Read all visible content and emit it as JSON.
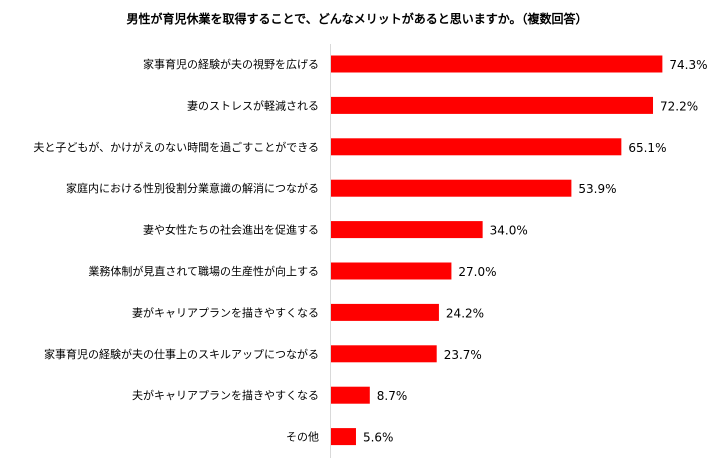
{
  "chart_data": {
    "type": "bar",
    "orientation": "horizontal",
    "title": "男性が育児休業を取得することで、どんなメリットがあると思いますか。（複数回答）",
    "categories": [
      "家事育児の経験が夫の視野を広げる",
      "妻のストレスが軽減される",
      "夫と子どもが、かけがえのない時間を過ごすことができる",
      "家庭内における性別役割分業意識の解消につながる",
      "妻や女性たちの社会進出を促進する",
      "業務体制が見直されて職場の生産性が向上する",
      "妻がキャリアプランを描きやすくなる",
      "家事育児の経験が夫の仕事上のスキルアップにつながる",
      "夫がキャリアプランを描きやすくなる",
      "その他"
    ],
    "values": [
      74.3,
      72.2,
      65.1,
      53.9,
      34.0,
      27.0,
      24.2,
      23.7,
      8.7,
      5.6
    ],
    "value_labels": [
      "74.3%",
      "72.2%",
      "65.1%",
      "53.9%",
      "34.0%",
      "27.0%",
      "24.2%",
      "23.7%",
      "8.7%",
      "5.6%"
    ],
    "xlim": [
      0,
      80
    ],
    "bar_color": "#ff0000",
    "grid": false,
    "legend": "none"
  }
}
